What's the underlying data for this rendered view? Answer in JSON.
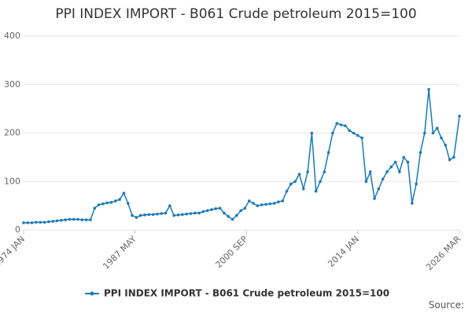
{
  "chart_data": {
    "type": "line",
    "title": "PPI INDEX IMPORT - B061 Crude petroleum 2015=100",
    "source": "Source:",
    "x": [
      "1974 JAN",
      "1974 JUL",
      "1975 JAN",
      "1975 JUL",
      "1976 JAN",
      "1976 JUL",
      "1977 JAN",
      "1977 JUL",
      "1978 JAN",
      "1978 JUL",
      "1979 JAN",
      "1979 JUL",
      "1980 JAN",
      "1980 JUL",
      "1981 JAN",
      "1981 JUL",
      "1982 JAN",
      "1982 JUL",
      "1983 JAN",
      "1983 JUL",
      "1984 JAN",
      "1984 JUL",
      "1985 JAN",
      "1985 JUL",
      "1986 JAN",
      "1986 JUL",
      "1987 JAN",
      "1987 JUL",
      "1988 JAN",
      "1988 JUL",
      "1989 JAN",
      "1989 JUL",
      "1990 JAN",
      "1990 JUL",
      "1991 JAN",
      "1991 JUL",
      "1992 JAN",
      "1992 JUL",
      "1993 JAN",
      "1993 JUL",
      "1994 JAN",
      "1994 JUL",
      "1995 JAN",
      "1995 JUL",
      "1996 JAN",
      "1996 JUL",
      "1997 JAN",
      "1997 JUL",
      "1998 JAN",
      "1998 JUL",
      "1999 JAN",
      "1999 JUL",
      "2000 JAN",
      "2000 JUL",
      "2001 JAN",
      "2001 JUL",
      "2002 JAN",
      "2002 JUL",
      "2003 JAN",
      "2003 JUL",
      "2004 JAN",
      "2004 JUL",
      "2005 JAN",
      "2005 JUL",
      "2006 JAN",
      "2006 JUL",
      "2007 JAN",
      "2007 JUL",
      "2008 JAN",
      "2008 JUL",
      "2009 JAN",
      "2009 JUL",
      "2010 JAN",
      "2010 JUL",
      "2011 JAN",
      "2011 JUL",
      "2012 JAN",
      "2012 JUL",
      "2013 JAN",
      "2013 JUL",
      "2014 JAN",
      "2014 JUL",
      "2015 JAN",
      "2015 JUL",
      "2016 JAN",
      "2016 JUL",
      "2017 JAN",
      "2017 JUL",
      "2018 JAN",
      "2018 JUL",
      "2019 JAN",
      "2019 JUL",
      "2020 JAN",
      "2020 JUL",
      "2021 JAN",
      "2021 JUL",
      "2022 JAN",
      "2022 JUL",
      "2023 JAN",
      "2023 JUL",
      "2024 JAN",
      "2024 JUL",
      "2025 JAN",
      "2025 JUL",
      "2026 MAR"
    ],
    "series": [
      {
        "name": "PPI INDEX IMPORT - B061 Crude petroleum 2015=100",
        "color": "#1a7ab8",
        "values": [
          15,
          15,
          15,
          16,
          16,
          16,
          17,
          18,
          19,
          20,
          21,
          22,
          22,
          22,
          21,
          21,
          21,
          45,
          52,
          54,
          56,
          57,
          60,
          63,
          76,
          55,
          30,
          26,
          30,
          31,
          32,
          32,
          33,
          34,
          35,
          50,
          30,
          31,
          32,
          33,
          34,
          35,
          35,
          38,
          40,
          42,
          44,
          45,
          35,
          28,
          22,
          30,
          40,
          45,
          60,
          55,
          50,
          52,
          53,
          54,
          55,
          58,
          60,
          80,
          95,
          100,
          115,
          85,
          120,
          200,
          80,
          100,
          120,
          160,
          200,
          220,
          217,
          215,
          205,
          200,
          195,
          190,
          100,
          120,
          65,
          85,
          105,
          120,
          130,
          140,
          120,
          150,
          140,
          55,
          95,
          160,
          200,
          290,
          200,
          210,
          190,
          175,
          145,
          150,
          235
        ]
      }
    ],
    "xticks": [
      "1974 JAN",
      "1987 MAY",
      "2000 SEP",
      "2014 JAN",
      "2026 MAR"
    ],
    "ylim": [
      0,
      400
    ],
    "yticks": [
      0,
      100,
      200,
      300,
      400
    ],
    "grid": true,
    "legend": "bottom"
  }
}
